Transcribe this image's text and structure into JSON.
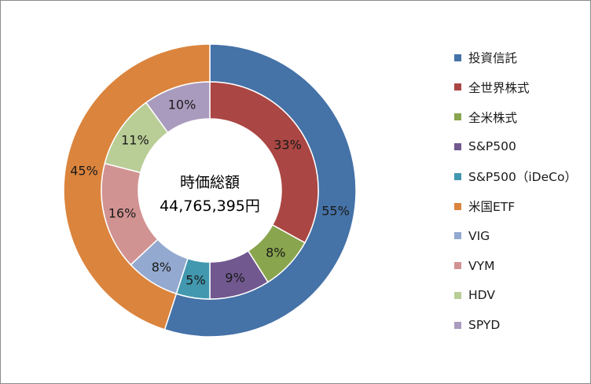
{
  "chart_data": {
    "type": "pie",
    "center_label": {
      "line1": "時価総額",
      "line2": "44,765,395円"
    },
    "rings": [
      {
        "ring": "outer",
        "slices": [
          {
            "name": "投資信託",
            "value": 55,
            "label": "55%",
            "color": "#4572a7"
          },
          {
            "name": "米国ETF",
            "value": 45,
            "label": "45%",
            "color": "#db843d"
          }
        ]
      },
      {
        "ring": "inner",
        "slices": [
          {
            "name": "全世界株式",
            "value": 33,
            "label": "33%",
            "color": "#aa4643"
          },
          {
            "name": "全米株式",
            "value": 8,
            "label": "8%",
            "color": "#89a54e"
          },
          {
            "name": "S&P500",
            "value": 9,
            "label": "9%",
            "color": "#71588f"
          },
          {
            "name": "S&P500（iDeCo）",
            "value": 5,
            "label": "5%",
            "color": "#4198af"
          },
          {
            "name": "VIG",
            "value": 8,
            "label": "8%",
            "color": "#93a9cf"
          },
          {
            "name": "VYM",
            "value": 16,
            "label": "16%",
            "color": "#d19392"
          },
          {
            "name": "HDV",
            "value": 11,
            "label": "11%",
            "color": "#b9cd96"
          },
          {
            "name": "SPYD",
            "value": 10,
            "label": "10%",
            "color": "#a99bbd"
          }
        ]
      }
    ],
    "legend": {
      "position": "right",
      "entries": [
        {
          "label": "投資信託",
          "color": "#4572a7"
        },
        {
          "label": "全世界株式",
          "color": "#aa4643"
        },
        {
          "label": "全米株式",
          "color": "#89a54e"
        },
        {
          "label": "S&P500",
          "color": "#71588f"
        },
        {
          "label": "S&P500（iDeCo）",
          "color": "#4198af"
        },
        {
          "label": "米国ETF",
          "color": "#db843d"
        },
        {
          "label": "VIG",
          "color": "#93a9cf"
        },
        {
          "label": "VYM",
          "color": "#d19392"
        },
        {
          "label": "HDV",
          "color": "#b9cd96"
        },
        {
          "label": "SPYD",
          "color": "#a99bbd"
        }
      ]
    }
  }
}
